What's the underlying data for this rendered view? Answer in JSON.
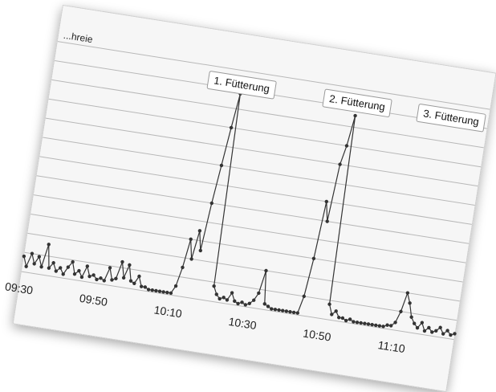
{
  "chart_data": {
    "type": "line",
    "ylabel": "...hreie",
    "xlabel": "",
    "xlim": [
      "09:30",
      "11:26"
    ],
    "ylim": [
      0,
      12
    ],
    "grid": true,
    "x_ticks": [
      "09:30",
      "09:50",
      "10:10",
      "10:30",
      "10:50",
      "11:10"
    ],
    "series": [
      {
        "points": [
          [
            "09:30",
            0.8
          ],
          [
            "09:31",
            0.3
          ],
          [
            "09:32",
            1.0
          ],
          [
            "09:33",
            0.5
          ],
          [
            "09:34",
            0.9
          ],
          [
            "09:35",
            0.4
          ],
          [
            "09:36",
            1.6
          ],
          [
            "09:37",
            0.4
          ],
          [
            "09:38",
            0.7
          ],
          [
            "09:39",
            0.3
          ],
          [
            "09:40",
            0.5
          ],
          [
            "09:41",
            0.2
          ],
          [
            "09:42",
            0.6
          ],
          [
            "09:43",
            0.9
          ],
          [
            "09:44",
            0.3
          ],
          [
            "09:45",
            0.5
          ],
          [
            "09:46",
            0.2
          ],
          [
            "09:47",
            0.8
          ],
          [
            "09:48",
            0.3
          ],
          [
            "09:49",
            0.4
          ],
          [
            "09:50",
            0.2
          ],
          [
            "09:51",
            0.3
          ],
          [
            "09:52",
            0.2
          ],
          [
            "09:53",
            0.9
          ],
          [
            "09:54",
            0.3
          ],
          [
            "09:55",
            0.4
          ],
          [
            "09:56",
            1.3
          ],
          [
            "09:57",
            0.5
          ],
          [
            "09:58",
            1.2
          ],
          [
            "09:59",
            0.4
          ],
          [
            "10:00",
            0.3
          ],
          [
            "10:01",
            0.7
          ],
          [
            "10:02",
            0.2
          ],
          [
            "10:03",
            0.2
          ],
          [
            "10:04",
            0.1
          ],
          [
            "10:05",
            0.1
          ],
          [
            "10:06",
            0.1
          ],
          [
            "10:07",
            0.1
          ],
          [
            "10:08",
            0.1
          ],
          [
            "10:09",
            0.1
          ],
          [
            "10:10",
            0.1
          ],
          [
            "10:11",
            0.5
          ],
          [
            "10:12",
            1.5
          ],
          [
            "10:13",
            3.0
          ],
          [
            "10:14",
            2.0
          ],
          [
            "10:15",
            3.5
          ],
          [
            "10:16",
            2.5
          ],
          [
            "10:17",
            5.0
          ],
          [
            "10:18",
            7.0
          ],
          [
            "10:19",
            9.0
          ],
          [
            "10:20",
            10.8
          ],
          [
            "10:21",
            0.8
          ],
          [
            "10:22",
            0.4
          ],
          [
            "10:23",
            0.2
          ],
          [
            "10:24",
            0.3
          ],
          [
            "10:25",
            0.2
          ],
          [
            "10:26",
            0.6
          ],
          [
            "10:27",
            0.2
          ],
          [
            "10:28",
            0.1
          ],
          [
            "10:29",
            0.2
          ],
          [
            "10:30",
            0.1
          ],
          [
            "10:31",
            0.2
          ],
          [
            "10:32",
            0.4
          ],
          [
            "10:33",
            0.8
          ],
          [
            "10:34",
            2.0
          ],
          [
            "10:35",
            0.3
          ],
          [
            "10:36",
            0.2
          ],
          [
            "10:37",
            0.1
          ],
          [
            "10:38",
            0.1
          ],
          [
            "10:39",
            0.1
          ],
          [
            "10:40",
            0.1
          ],
          [
            "10:41",
            0.1
          ],
          [
            "10:42",
            0.1
          ],
          [
            "10:43",
            0.1
          ],
          [
            "10:44",
            0.1
          ],
          [
            "10:45",
            1.0
          ],
          [
            "10:46",
            3.0
          ],
          [
            "10:47",
            6.0
          ],
          [
            "10:48",
            5.0
          ],
          [
            "10:49",
            8.0
          ],
          [
            "10:50",
            9.0
          ],
          [
            "10:51",
            10.6
          ],
          [
            "10:52",
            0.8
          ],
          [
            "10:53",
            0.3
          ],
          [
            "10:54",
            0.5
          ],
          [
            "10:55",
            0.2
          ],
          [
            "10:56",
            0.2
          ],
          [
            "10:57",
            0.1
          ],
          [
            "10:58",
            0.2
          ],
          [
            "10:59",
            0.1
          ],
          [
            "11:00",
            0.1
          ],
          [
            "11:01",
            0.1
          ],
          [
            "11:02",
            0.1
          ],
          [
            "11:03",
            0.1
          ],
          [
            "11:04",
            0.1
          ],
          [
            "11:05",
            0.1
          ],
          [
            "11:06",
            0.1
          ],
          [
            "11:07",
            0.1
          ],
          [
            "11:08",
            0.2
          ],
          [
            "11:09",
            0.2
          ],
          [
            "11:10",
            0.4
          ],
          [
            "11:11",
            1.0
          ],
          [
            "11:12",
            2.0
          ],
          [
            "11:13",
            1.5
          ],
          [
            "11:14",
            0.8
          ],
          [
            "11:15",
            0.5
          ],
          [
            "11:16",
            0.3
          ],
          [
            "11:17",
            0.6
          ],
          [
            "11:18",
            0.2
          ],
          [
            "11:19",
            0.4
          ],
          [
            "11:20",
            0.2
          ],
          [
            "11:21",
            0.3
          ],
          [
            "11:22",
            0.5
          ],
          [
            "11:23",
            0.2
          ],
          [
            "11:24",
            0.4
          ],
          [
            "11:25",
            0.2
          ],
          [
            "11:26",
            0.3
          ]
        ]
      }
    ],
    "annotations": [
      {
        "text": "1. Fütterung",
        "x": "10:20"
      },
      {
        "text": "2. Fütterung",
        "x": "10:51"
      },
      {
        "text": "3. Fütterung",
        "x": "11:22"
      }
    ],
    "colors": {
      "line": "#333333",
      "marker": "#333333",
      "grid": "#b8b8b8",
      "plot_bg": "#f6f6f6"
    }
  }
}
